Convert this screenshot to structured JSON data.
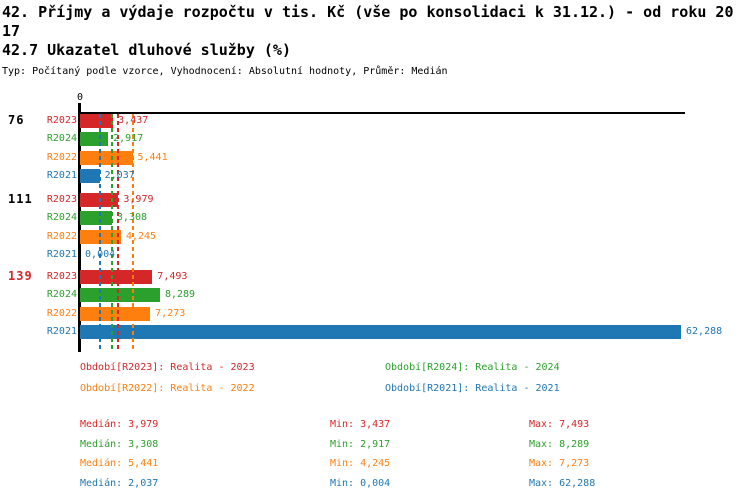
{
  "header": {
    "title": "42. Příjmy a výdaje rozpočtu v tis. Kč (vše po konsolidaci k 31.12.) - od roku 2017",
    "subtitle": "42.7 Ukazatel dluhové služby (%)",
    "meta": "Typ: Počítaný podle vzorce, Vyhodnocení: Absolutní hodnoty, Průměr: Medián"
  },
  "colors": {
    "R2023": "#d62728",
    "R2024": "#2ca02c",
    "R2022": "#ff7f0e",
    "R2021": "#1f77b4",
    "axis": "#000000",
    "highlight_group": "#d62728"
  },
  "chart_data": {
    "type": "bar",
    "orientation": "horizontal",
    "axis_zero_label": "0",
    "xlim": [
      0,
      62.7
    ],
    "grid": false,
    "series_order": [
      "R2023",
      "R2024",
      "R2022",
      "R2021"
    ],
    "groups": [
      {
        "label": "76",
        "label_color": "#000000",
        "bars": [
          {
            "series": "R2023",
            "value": 3.437,
            "display": "3,437"
          },
          {
            "series": "R2024",
            "value": 2.917,
            "display": "2,917"
          },
          {
            "series": "R2022",
            "value": 5.441,
            "display": "5,441"
          },
          {
            "series": "R2021",
            "value": 2.037,
            "display": "2,037"
          }
        ]
      },
      {
        "label": "111",
        "label_color": "#000000",
        "bars": [
          {
            "series": "R2023",
            "value": 3.979,
            "display": "3,979"
          },
          {
            "series": "R2024",
            "value": 3.308,
            "display": "3,308"
          },
          {
            "series": "R2022",
            "value": 4.245,
            "display": "4,245"
          },
          {
            "series": "R2021",
            "value": 0.004,
            "display": "0,004"
          }
        ]
      },
      {
        "label": "139",
        "label_color": "#d62728",
        "bars": [
          {
            "series": "R2023",
            "value": 7.493,
            "display": "7,493"
          },
          {
            "series": "R2024",
            "value": 8.289,
            "display": "8,289"
          },
          {
            "series": "R2022",
            "value": 7.273,
            "display": "7,273"
          },
          {
            "series": "R2021",
            "value": 62.288,
            "display": "62,288"
          }
        ]
      }
    ],
    "median_lines": [
      {
        "series": "R2023",
        "value": 3.979
      },
      {
        "series": "R2024",
        "value": 3.308
      },
      {
        "series": "R2022",
        "value": 5.441
      },
      {
        "series": "R2021",
        "value": 2.037
      }
    ],
    "legend": [
      {
        "series": "R2023",
        "text": "Období[R2023]: Realita - 2023"
      },
      {
        "series": "R2024",
        "text": "Období[R2024]: Realita - 2024"
      },
      {
        "series": "R2022",
        "text": "Období[R2022]: Realita - 2022"
      },
      {
        "series": "R2021",
        "text": "Období[R2021]: Realita - 2021"
      }
    ],
    "stats": [
      {
        "series": "R2023",
        "cells": [
          "Medián: 3,979",
          "Min: 3,437",
          "Max: 7,493"
        ]
      },
      {
        "series": "R2024",
        "cells": [
          "Medián: 3,308",
          "Min: 2,917",
          "Max: 8,289"
        ]
      },
      {
        "series": "R2022",
        "cells": [
          "Medián: 5,441",
          "Min: 4,245",
          "Max: 7,273"
        ]
      },
      {
        "series": "R2021",
        "cells": [
          "Medián: 2,037",
          "Min: 0,004",
          "Max: 62,288"
        ]
      }
    ]
  }
}
